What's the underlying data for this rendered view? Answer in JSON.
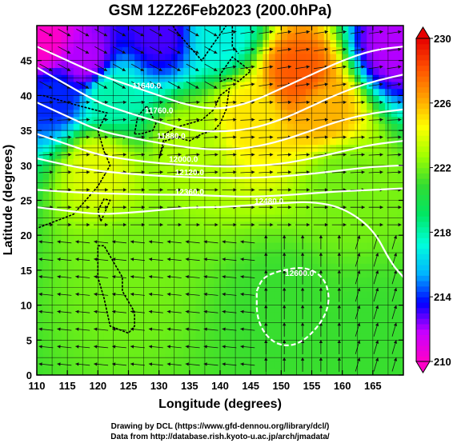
{
  "chart_data": {
    "type": "heatmap",
    "title": "GSM 12Z26Feb2023 (200.0hPa)",
    "xlabel": "Longitude (degrees)",
    "ylabel": "Latitude  (degrees)",
    "xlim": [
      110,
      170
    ],
    "ylim": [
      0,
      50
    ],
    "x_ticks": [
      110,
      115,
      120,
      125,
      130,
      135,
      140,
      145,
      150,
      155,
      160,
      165
    ],
    "y_ticks": [
      0,
      5,
      10,
      15,
      20,
      25,
      30,
      35,
      40,
      45
    ],
    "grid": true,
    "colorbar": {
      "min": 210,
      "max": 230,
      "ticks": [
        210,
        214,
        218,
        222,
        226,
        230
      ],
      "colors": [
        "#ff00c8",
        "#c800ff",
        "#0000ff",
        "#00b4ff",
        "#00ffdc",
        "#00e664",
        "#32dc32",
        "#a0ff00",
        "#ffff00",
        "#ffa000",
        "#ff5000",
        "#e60000"
      ]
    },
    "field_centers": [
      {
        "lon": 111,
        "lat": 48,
        "value": 210
      },
      {
        "lon": 118,
        "lat": 45,
        "value": 212
      },
      {
        "lon": 130,
        "lat": 49,
        "value": 213
      },
      {
        "lon": 140,
        "lat": 49,
        "value": 217
      },
      {
        "lon": 168,
        "lat": 47,
        "value": 212
      },
      {
        "lon": 113,
        "lat": 40,
        "value": 214
      },
      {
        "lon": 122,
        "lat": 40,
        "value": 218
      },
      {
        "lon": 153,
        "lat": 43,
        "value": 228
      },
      {
        "lon": 157,
        "lat": 38,
        "value": 226
      },
      {
        "lon": 145,
        "lat": 37,
        "value": 225
      },
      {
        "lon": 135,
        "lat": 33,
        "value": 223
      },
      {
        "lon": 120,
        "lat": 30,
        "value": 224
      },
      {
        "lon": 160,
        "lat": 28,
        "value": 222
      },
      {
        "lon": 125,
        "lat": 15,
        "value": 222
      },
      {
        "lon": 150,
        "lat": 10,
        "value": 221
      },
      {
        "lon": 165,
        "lat": 5,
        "value": 221
      }
    ],
    "contours": [
      {
        "label": "11640.0",
        "label_lon": 128,
        "label_lat": 41,
        "points": [
          [
            110,
            47
          ],
          [
            115,
            45
          ],
          [
            120,
            43
          ],
          [
            125,
            41.5
          ],
          [
            130,
            40
          ],
          [
            135,
            38.5
          ],
          [
            140,
            38
          ],
          [
            145,
            39
          ],
          [
            150,
            41
          ],
          [
            155,
            43
          ],
          [
            160,
            45
          ],
          [
            165,
            46.5
          ],
          [
            170,
            47
          ]
        ]
      },
      {
        "label": "11760.0",
        "label_lon": 130,
        "label_lat": 37.5,
        "points": [
          [
            110,
            44
          ],
          [
            115,
            41.5
          ],
          [
            120,
            39
          ],
          [
            125,
            37.5
          ],
          [
            130,
            36.2
          ],
          [
            135,
            35
          ],
          [
            140,
            34.8
          ],
          [
            145,
            35.2
          ],
          [
            150,
            36.5
          ],
          [
            155,
            38.5
          ],
          [
            160,
            40.5
          ],
          [
            165,
            42
          ],
          [
            170,
            43
          ]
        ]
      },
      {
        "label": "11880.0",
        "label_lon": 132,
        "label_lat": 33.8,
        "points": [
          [
            110,
            39
          ],
          [
            115,
            37
          ],
          [
            120,
            35
          ],
          [
            125,
            34
          ],
          [
            130,
            33.2
          ],
          [
            135,
            32.5
          ],
          [
            140,
            32.2
          ],
          [
            145,
            32.5
          ],
          [
            150,
            33.5
          ],
          [
            155,
            35
          ],
          [
            160,
            36.5
          ],
          [
            165,
            37.5
          ],
          [
            170,
            38
          ]
        ]
      },
      {
        "label": "12000.0",
        "label_lon": 134,
        "label_lat": 30.5,
        "points": [
          [
            110,
            34.5
          ],
          [
            115,
            33
          ],
          [
            120,
            31.5
          ],
          [
            125,
            30.8
          ],
          [
            130,
            30.3
          ],
          [
            135,
            30
          ],
          [
            140,
            29.8
          ],
          [
            145,
            29.9
          ],
          [
            150,
            30.2
          ],
          [
            155,
            31
          ],
          [
            160,
            32
          ],
          [
            165,
            33
          ],
          [
            170,
            33.5
          ]
        ]
      },
      {
        "label": "12120.0",
        "label_lon": 135,
        "label_lat": 28.6,
        "points": [
          [
            110,
            31
          ],
          [
            115,
            30
          ],
          [
            120,
            29.2
          ],
          [
            125,
            28.8
          ],
          [
            130,
            28.5
          ],
          [
            135,
            28.3
          ],
          [
            140,
            28.2
          ],
          [
            145,
            28.2
          ],
          [
            150,
            28.4
          ],
          [
            155,
            28.8
          ],
          [
            160,
            29.3
          ],
          [
            165,
            29.8
          ],
          [
            170,
            30
          ]
        ]
      },
      {
        "label": "12360.0",
        "label_lon": 135,
        "label_lat": 25.8,
        "points": [
          [
            110,
            26.5
          ],
          [
            115,
            26.2
          ],
          [
            120,
            26
          ],
          [
            125,
            25.9
          ],
          [
            130,
            25.8
          ],
          [
            135,
            25.8
          ],
          [
            140,
            25.6
          ],
          [
            145,
            25.5
          ],
          [
            150,
            25.7
          ],
          [
            155,
            26
          ],
          [
            160,
            26.3
          ],
          [
            165,
            26.5
          ],
          [
            170,
            26.7
          ]
        ]
      },
      {
        "label": "12480.0",
        "label_lon": 148,
        "label_lat": 24.5,
        "points": [
          [
            110,
            24
          ],
          [
            115,
            23.5
          ],
          [
            120,
            23
          ],
          [
            125,
            23.2
          ],
          [
            130,
            23.6
          ],
          [
            135,
            24
          ],
          [
            140,
            24
          ],
          [
            145,
            24.3
          ],
          [
            150,
            24.6
          ],
          [
            155,
            24.8
          ],
          [
            160,
            24
          ],
          [
            165,
            21
          ],
          [
            168,
            16
          ],
          [
            170,
            14
          ]
        ]
      },
      {
        "label": "12600.0",
        "label_lon": 153,
        "label_lat": 14.2,
        "points": [
          [
            146,
            12
          ],
          [
            147,
            14
          ],
          [
            150,
            15
          ],
          [
            154,
            15.5
          ],
          [
            157,
            14
          ],
          [
            158,
            11
          ],
          [
            157,
            8
          ],
          [
            154,
            5
          ],
          [
            151,
            4
          ],
          [
            148,
            5
          ],
          [
            146,
            8
          ],
          [
            146,
            12
          ]
        ]
      }
    ],
    "wind_regions": [
      {
        "lon": [
          110,
          140
        ],
        "lat": [
          40,
          50
        ],
        "u": 1.0,
        "v": -0.55
      },
      {
        "lon": [
          140,
          170
        ],
        "lat": [
          40,
          50
        ],
        "u": 1.0,
        "v": 0.15
      },
      {
        "lon": [
          110,
          170
        ],
        "lat": [
          28,
          40
        ],
        "u": 1.0,
        "v": 0.05
      },
      {
        "lon": [
          110,
          170
        ],
        "lat": [
          20,
          28
        ],
        "u": 1.0,
        "v": 0.0
      },
      {
        "lon": [
          110,
          145
        ],
        "lat": [
          0,
          20
        ],
        "u": -1.0,
        "v": 0.1
      },
      {
        "lon": [
          145,
          160
        ],
        "lat": [
          0,
          20
        ],
        "u": 0.0,
        "v": 1.0
      },
      {
        "lon": [
          160,
          170
        ],
        "lat": [
          0,
          20
        ],
        "u": 0.3,
        "v": 1.0
      }
    ],
    "coastlines": [
      [
        [
          111,
          40
        ],
        [
          117,
          38.5
        ],
        [
          121.5,
          37.5
        ],
        [
          120,
          35
        ],
        [
          121,
          32
        ],
        [
          122,
          30
        ],
        [
          120,
          27
        ],
        [
          118,
          25
        ],
        [
          116,
          23
        ],
        [
          113,
          22
        ],
        [
          110,
          21
        ]
      ],
      [
        [
          126,
          34.5
        ],
        [
          126.5,
          37
        ],
        [
          128,
          38.5
        ],
        [
          129.5,
          36
        ],
        [
          129,
          35
        ],
        [
          127,
          34.5
        ],
        [
          126,
          34.5
        ]
      ],
      [
        [
          130,
          31
        ],
        [
          131,
          33.5
        ],
        [
          133,
          34
        ],
        [
          135,
          33.5
        ],
        [
          137,
          34.5
        ],
        [
          139,
          35
        ],
        [
          140,
          36
        ],
        [
          141,
          38
        ],
        [
          141.5,
          41
        ],
        [
          140,
          40
        ],
        [
          139,
          38
        ],
        [
          137,
          36.5
        ],
        [
          133,
          35.5
        ],
        [
          131,
          34.5
        ],
        [
          130,
          31
        ]
      ],
      [
        [
          140,
          42
        ],
        [
          141.5,
          42.5
        ],
        [
          143,
          42
        ],
        [
          145,
          43.5
        ],
        [
          142,
          45.5
        ],
        [
          140,
          43
        ],
        [
          140,
          42
        ]
      ],
      [
        [
          120.5,
          22
        ],
        [
          121.5,
          24
        ],
        [
          122,
          25
        ],
        [
          121,
          25.2
        ],
        [
          120,
          23.5
        ],
        [
          120.5,
          22
        ]
      ],
      [
        [
          120,
          18.5
        ],
        [
          121,
          18.5
        ],
        [
          122,
          17
        ],
        [
          124,
          14
        ],
        [
          124,
          12
        ],
        [
          126,
          9
        ],
        [
          126,
          7
        ],
        [
          125,
          6
        ],
        [
          122,
          7
        ],
        [
          121,
          11
        ],
        [
          120,
          14
        ],
        [
          120,
          18.5
        ]
      ],
      [
        [
          142,
          53
        ],
        [
          142,
          47
        ],
        [
          143,
          46
        ]
      ],
      [
        [
          130,
          53
        ],
        [
          133,
          49
        ],
        [
          137,
          45
        ],
        [
          141,
          50
        ]
      ]
    ]
  },
  "footer": {
    "line1": "Drawing by DCL (https://www.gfd-dennou.org/library/dcl/)",
    "line2": "Data from http://database.rish.kyoto-u.ac.jp/arch/jmadata/"
  }
}
